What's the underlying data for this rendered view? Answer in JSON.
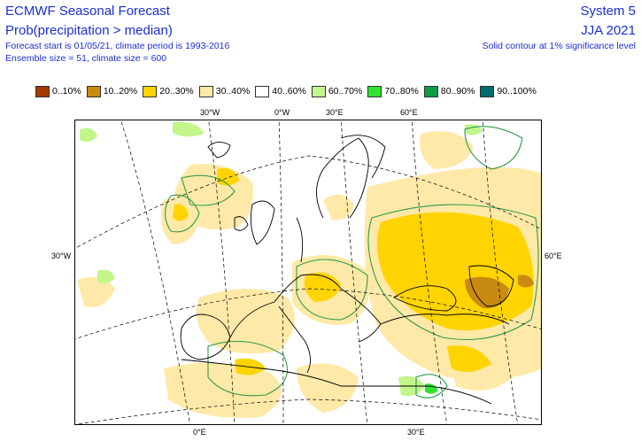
{
  "header": {
    "title": "ECMWF Seasonal Forecast",
    "subtitle": "Prob(precipitation > median)",
    "forecast_info": "Forecast start is 01/05/21, climate period is 1993-2016",
    "ensemble_info": "Ensemble size = 51, climate size = 600",
    "system": "System 5",
    "season": "JJA 2021",
    "significance_note": "Solid contour at 1% significance level"
  },
  "legend": {
    "items": [
      {
        "label": "0..10%",
        "color": "#a33a00"
      },
      {
        "label": "10..20%",
        "color": "#c98a12"
      },
      {
        "label": "20..30%",
        "color": "#ffd400"
      },
      {
        "label": "30..40%",
        "color": "#ffe9a8"
      },
      {
        "label": "40..60%",
        "color": "#ffffff"
      },
      {
        "label": "60..70%",
        "color": "#c2f58a"
      },
      {
        "label": "70..80%",
        "color": "#2fe52f"
      },
      {
        "label": "80..90%",
        "color": "#0f9a4a"
      },
      {
        "label": "90..100%",
        "color": "#006b6b"
      }
    ]
  },
  "map": {
    "graticule_labels": {
      "top": [
        "30°W",
        "0°W",
        "30°E",
        "60°E"
      ],
      "left": "30°W",
      "right": "60°E",
      "bottom": [
        "0°E",
        "30°E"
      ]
    },
    "colors": {
      "coast": "#000000",
      "graticule": "#000000",
      "contour": "#2e9a4a",
      "light_yellow": "#ffe9a8",
      "yellow": "#ffd400",
      "orange": "#c98a12",
      "light_green": "#c2f58a",
      "green": "#2fe52f"
    }
  }
}
